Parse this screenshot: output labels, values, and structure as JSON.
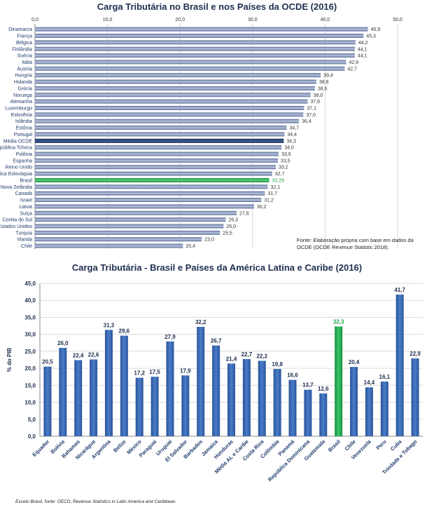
{
  "chart_data": [
    {
      "type": "bar",
      "orientation": "horizontal",
      "title": "Carga Tributária no Brasil e nos Países da OCDE (2016)",
      "xlim": [
        0,
        50
      ],
      "xticks": [
        "0,0",
        "10,0",
        "20,0",
        "30,0",
        "40,0",
        "50,0"
      ],
      "grid": true,
      "categories": [
        "Dinamarca",
        "França",
        "Bélgica",
        "Finlândia",
        "Suécia",
        "Itália",
        "Áustria",
        "Hungria",
        "Holanda",
        "Grécia",
        "Noruega",
        "Alemanha",
        "Luxemburgo",
        "Eslovênia",
        "Islândia",
        "Estônia",
        "Portugal",
        "Média OCDE",
        "República Tcheca",
        "Polônia",
        "Espanha",
        "Reino Unido",
        "República Eslováquia",
        "Brasil",
        "Nova Zelândia",
        "Canadá",
        "Israel",
        "Latvia",
        "Suiça",
        "Coréia do Sul",
        "Estados Unidos",
        "Turquia",
        "Irlanda",
        "Chile"
      ],
      "values": [
        45.9,
        45.3,
        44.2,
        44.1,
        44.1,
        42.9,
        42.7,
        39.4,
        38.8,
        38.6,
        38.0,
        37.6,
        37.1,
        37.0,
        36.4,
        34.7,
        34.4,
        34.3,
        34.0,
        33.6,
        33.5,
        33.2,
        32.7,
        32.29,
        32.1,
        31.7,
        31.2,
        30.2,
        27.8,
        26.3,
        26.0,
        25.5,
        23.0,
        20.4
      ],
      "value_labels": [
        "45,9",
        "45,3",
        "44,2",
        "44,1",
        "44,1",
        "42,9",
        "42,7",
        "39,4",
        "38,8",
        "38,6",
        "38,0",
        "37,6",
        "37,1",
        "37,0",
        "36,4",
        "34,7",
        "34,4",
        "34,3",
        "34,0",
        "33,6",
        "33,5",
        "33,2",
        "32,7",
        "32,29",
        "32,1",
        "31,7",
        "31,2",
        "30,2",
        "27,8",
        "26,3",
        "26,0",
        "25,5",
        "23,0",
        "20,4"
      ],
      "highlight": {
        "Brasil": "#22a84a",
        "Média OCDE": "#1f3a6b"
      },
      "bar_color": "#7f91b8",
      "source_note": "Fonte: Elaboração própria com base em dados da OCDE (OCDE Revenue Statistic 2018)."
    },
    {
      "type": "bar",
      "title": "Carga Tributária - Brasil e Países da América Latina e Caribe (2016)",
      "ylabel": "% do PIB",
      "ylim": [
        0,
        45
      ],
      "yticks": [
        "0,0",
        "5,0",
        "10,0",
        "15,0",
        "20,0",
        "25,0",
        "30,0",
        "35,0",
        "40,0",
        "45,0"
      ],
      "grid": true,
      "categories": [
        "Equador",
        "Bolívia",
        "Bahamas",
        "Nicarágua",
        "Argentina",
        "Belize",
        "México",
        "Paraguai",
        "Uruguai",
        "El Salvador",
        "Barbados",
        "Jamaica",
        "Honduras",
        "Média AL e Caribe",
        "Costa Rica",
        "Colômbia",
        "Panamá",
        "República Dominicana",
        "Guatemala",
        "Brasil",
        "Chile",
        "Venezuela",
        "Peru",
        "Cuba",
        "Trindade e Tobago"
      ],
      "values": [
        20.5,
        26.0,
        22.4,
        22.6,
        31.3,
        29.6,
        17.2,
        17.5,
        27.9,
        17.9,
        32.2,
        26.7,
        21.4,
        22.7,
        22.2,
        19.8,
        16.6,
        13.7,
        12.6,
        32.3,
        20.4,
        14.4,
        16.1,
        41.7,
        22.9
      ],
      "value_labels": [
        "20,5",
        "26,0",
        "22,4",
        "22,6",
        "31,3",
        "29,6",
        "17,2",
        "17,5",
        "27,9",
        "17,9",
        "32,2",
        "26,7",
        "21,4",
        "22,7",
        "22,2",
        "19,8",
        "16,6",
        "13,7",
        "12,6",
        "32,3",
        "20,4",
        "14,4",
        "16,1",
        "41,7",
        "22,9"
      ],
      "highlight": {
        "Brasil": "#1fa84a"
      },
      "bar_color": "#2f5fa8",
      "source_note": "Exceto Brasil, fonte: OECD, Revenue Statistics in Latin America and Caribbean."
    }
  ]
}
